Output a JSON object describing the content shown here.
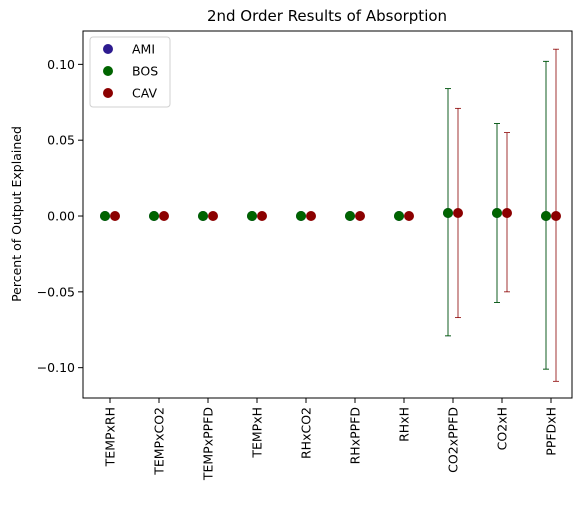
{
  "chart_data": {
    "type": "scatter",
    "title": "2nd Order Results of Absorption",
    "xlabel": "",
    "ylabel": "Percent of Output Explained",
    "categories": [
      "TEMPxRH",
      "TEMPxCO2",
      "TEMPxPPFD",
      "TEMPxH",
      "RHxCO2",
      "RHxPPFD",
      "RHxH",
      "CO2xPPFD",
      "CO2xH",
      "PPFDxH"
    ],
    "ylim": [
      -0.12,
      0.122
    ],
    "yticks": [
      -0.1,
      -0.05,
      0.0,
      0.05,
      0.1
    ],
    "ytick_labels": [
      "−0.10",
      "−0.05",
      "0.00",
      "0.05",
      "0.10"
    ],
    "grid": false,
    "legend_position": "top-left",
    "series": [
      {
        "name": "AMI",
        "color": "#2d1b8f",
        "values": [
          0,
          0,
          0,
          0,
          0,
          0,
          0,
          0.002,
          0.002,
          0.0
        ],
        "lower": [
          0,
          0,
          0,
          0,
          0,
          0,
          0,
          -0.079,
          -0.057,
          -0.101
        ],
        "upper": [
          0,
          0,
          0,
          0,
          0,
          0,
          0,
          0.084,
          0.061,
          0.102
        ]
      },
      {
        "name": "BOS",
        "color": "#006400",
        "values": [
          0,
          0,
          0,
          0,
          0,
          0,
          0,
          0.002,
          0.002,
          0.0
        ],
        "lower": [
          0,
          0,
          0,
          0,
          0,
          0,
          0,
          -0.079,
          -0.057,
          -0.101
        ],
        "upper": [
          0,
          0,
          0,
          0,
          0,
          0,
          0,
          0.084,
          0.061,
          0.102
        ]
      },
      {
        "name": "CAV",
        "color": "#8b0000",
        "values": [
          0,
          0,
          0,
          0,
          0,
          0,
          0,
          0.002,
          0.002,
          0.0
        ],
        "lower": [
          0,
          0,
          0,
          0,
          0,
          0,
          0,
          -0.067,
          -0.05,
          -0.109
        ],
        "upper": [
          0,
          0,
          0,
          0,
          0,
          0,
          0,
          0.071,
          0.055,
          0.11
        ]
      }
    ]
  }
}
